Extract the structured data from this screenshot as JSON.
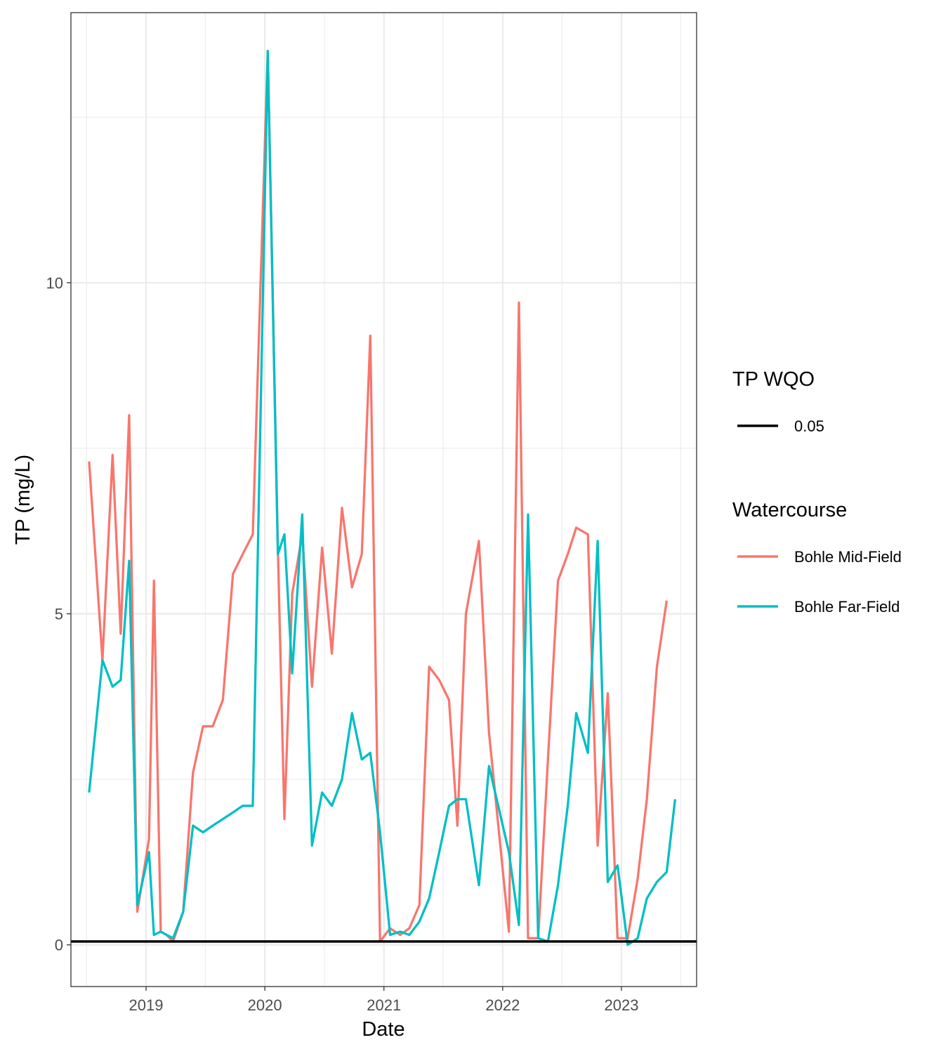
{
  "chart_data": {
    "type": "line",
    "xlabel": "Date",
    "ylabel": "TP (mg/L)",
    "xlim": [
      "2018-05-15",
      "2023-08-20"
    ],
    "ylim": [
      -0.63,
      14.08
    ],
    "x_ticks": [
      {
        "date": "2019-01-01",
        "label": "2019"
      },
      {
        "date": "2020-01-01",
        "label": "2020"
      },
      {
        "date": "2021-01-01",
        "label": "2021"
      },
      {
        "date": "2022-01-01",
        "label": "2022"
      },
      {
        "date": "2023-01-01",
        "label": "2023"
      }
    ],
    "y_ticks": [
      0,
      5,
      10
    ],
    "grid": true,
    "legend_position": "right",
    "reference_line": {
      "legend_title": "TP WQO",
      "label": "0.05",
      "value": 0.05,
      "color": "#000000"
    },
    "legend_title": "Watercourse",
    "series": [
      {
        "name": "Bohle Mid-Field",
        "color": "#F8766D",
        "points": [
          [
            "2018-07-10",
            7.3
          ],
          [
            "2018-08-20",
            4.3
          ],
          [
            "2018-09-20",
            7.4
          ],
          [
            "2018-10-15",
            4.7
          ],
          [
            "2018-11-10",
            8.0
          ],
          [
            "2018-12-05",
            0.5
          ],
          [
            "2019-01-10",
            1.6
          ],
          [
            "2019-01-25",
            5.5
          ],
          [
            "2019-02-15",
            0.2
          ],
          [
            "2019-03-05",
            0.15
          ],
          [
            "2019-03-25",
            0.05
          ],
          [
            "2019-04-25",
            0.5
          ],
          [
            "2019-05-25",
            2.6
          ],
          [
            "2019-06-25",
            3.3
          ],
          [
            "2019-07-25",
            3.3
          ],
          [
            "2019-08-25",
            3.7
          ],
          [
            "2019-09-25",
            5.6
          ],
          [
            "2019-10-25",
            5.9
          ],
          [
            "2019-11-25",
            6.2
          ],
          [
            "2020-01-10",
            13.5
          ],
          [
            "2020-02-10",
            6.0
          ],
          [
            "2020-03-01",
            1.9
          ],
          [
            "2020-03-25",
            5.3
          ],
          [
            "2020-04-25",
            6.2
          ],
          [
            "2020-05-25",
            3.9
          ],
          [
            "2020-06-25",
            6.0
          ],
          [
            "2020-07-25",
            4.4
          ],
          [
            "2020-08-25",
            6.6
          ],
          [
            "2020-09-25",
            5.4
          ],
          [
            "2020-10-25",
            5.9
          ],
          [
            "2020-11-20",
            9.2
          ],
          [
            "2020-12-20",
            0.05
          ],
          [
            "2021-01-20",
            0.25
          ],
          [
            "2021-02-20",
            0.15
          ],
          [
            "2021-03-20",
            0.25
          ],
          [
            "2021-04-20",
            0.6
          ],
          [
            "2021-05-20",
            4.2
          ],
          [
            "2021-06-20",
            4.0
          ],
          [
            "2021-07-20",
            3.7
          ],
          [
            "2021-08-15",
            1.8
          ],
          [
            "2021-09-10",
            5.0
          ],
          [
            "2021-10-20",
            6.1
          ],
          [
            "2021-11-20",
            3.2
          ],
          [
            "2022-01-20",
            0.2
          ],
          [
            "2022-02-20",
            9.7
          ],
          [
            "2022-03-20",
            0.1
          ],
          [
            "2022-04-20",
            0.1
          ],
          [
            "2022-05-20",
            2.8
          ],
          [
            "2022-06-20",
            5.5
          ],
          [
            "2022-07-20",
            5.9
          ],
          [
            "2022-08-15",
            6.3
          ],
          [
            "2022-09-20",
            6.2
          ],
          [
            "2022-10-20",
            1.5
          ],
          [
            "2022-11-20",
            3.8
          ],
          [
            "2022-12-20",
            0.1
          ],
          [
            "2023-01-20",
            0.1
          ],
          [
            "2023-02-20",
            1.0
          ],
          [
            "2023-03-20",
            2.2
          ],
          [
            "2023-04-20",
            4.2
          ],
          [
            "2023-05-20",
            5.2
          ]
        ]
      },
      {
        "name": "Bohle Far-Field",
        "color": "#00BFC4",
        "points": [
          [
            "2018-07-10",
            2.3
          ],
          [
            "2018-08-20",
            4.3
          ],
          [
            "2018-09-20",
            3.9
          ],
          [
            "2018-10-15",
            4.0
          ],
          [
            "2018-11-10",
            5.8
          ],
          [
            "2018-12-05",
            0.6
          ],
          [
            "2019-01-10",
            1.4
          ],
          [
            "2019-01-25",
            0.15
          ],
          [
            "2019-02-15",
            0.2
          ],
          [
            "2019-03-05",
            0.15
          ],
          [
            "2019-03-25",
            0.1
          ],
          [
            "2019-04-25",
            0.5
          ],
          [
            "2019-05-25",
            1.8
          ],
          [
            "2019-06-25",
            1.7
          ],
          [
            "2019-07-25",
            1.8
          ],
          [
            "2019-08-25",
            1.9
          ],
          [
            "2019-09-25",
            2.0
          ],
          [
            "2019-10-25",
            2.1
          ],
          [
            "2019-11-25",
            2.1
          ],
          [
            "2020-01-10",
            13.5
          ],
          [
            "2020-02-10",
            5.9
          ],
          [
            "2020-03-01",
            6.2
          ],
          [
            "2020-03-25",
            4.1
          ],
          [
            "2020-04-25",
            6.5
          ],
          [
            "2020-05-25",
            1.5
          ],
          [
            "2020-06-25",
            2.3
          ],
          [
            "2020-07-25",
            2.1
          ],
          [
            "2020-08-25",
            2.5
          ],
          [
            "2020-09-25",
            3.5
          ],
          [
            "2020-10-25",
            2.8
          ],
          [
            "2020-11-20",
            2.9
          ],
          [
            "2020-12-20",
            1.7
          ],
          [
            "2021-01-20",
            0.15
          ],
          [
            "2021-02-20",
            0.2
          ],
          [
            "2021-03-20",
            0.15
          ],
          [
            "2021-04-20",
            0.35
          ],
          [
            "2021-05-20",
            0.7
          ],
          [
            "2021-06-20",
            1.4
          ],
          [
            "2021-07-20",
            2.1
          ],
          [
            "2021-08-15",
            2.2
          ],
          [
            "2021-09-10",
            2.2
          ],
          [
            "2021-10-20",
            0.9
          ],
          [
            "2021-11-20",
            2.7
          ],
          [
            "2022-01-20",
            1.4
          ],
          [
            "2022-02-20",
            0.3
          ],
          [
            "2022-03-20",
            6.5
          ],
          [
            "2022-04-20",
            0.1
          ],
          [
            "2022-05-20",
            0.05
          ],
          [
            "2022-06-20",
            0.9
          ],
          [
            "2022-07-20",
            2.1
          ],
          [
            "2022-08-15",
            3.5
          ],
          [
            "2022-09-20",
            2.9
          ],
          [
            "2022-10-20",
            6.1
          ],
          [
            "2022-11-20",
            0.95
          ],
          [
            "2022-12-20",
            1.2
          ],
          [
            "2023-01-20",
            0.0
          ],
          [
            "2023-02-20",
            0.1
          ],
          [
            "2023-03-20",
            0.7
          ],
          [
            "2023-04-20",
            0.95
          ],
          [
            "2023-05-20",
            1.1
          ],
          [
            "2023-06-15",
            2.2
          ]
        ]
      }
    ]
  }
}
